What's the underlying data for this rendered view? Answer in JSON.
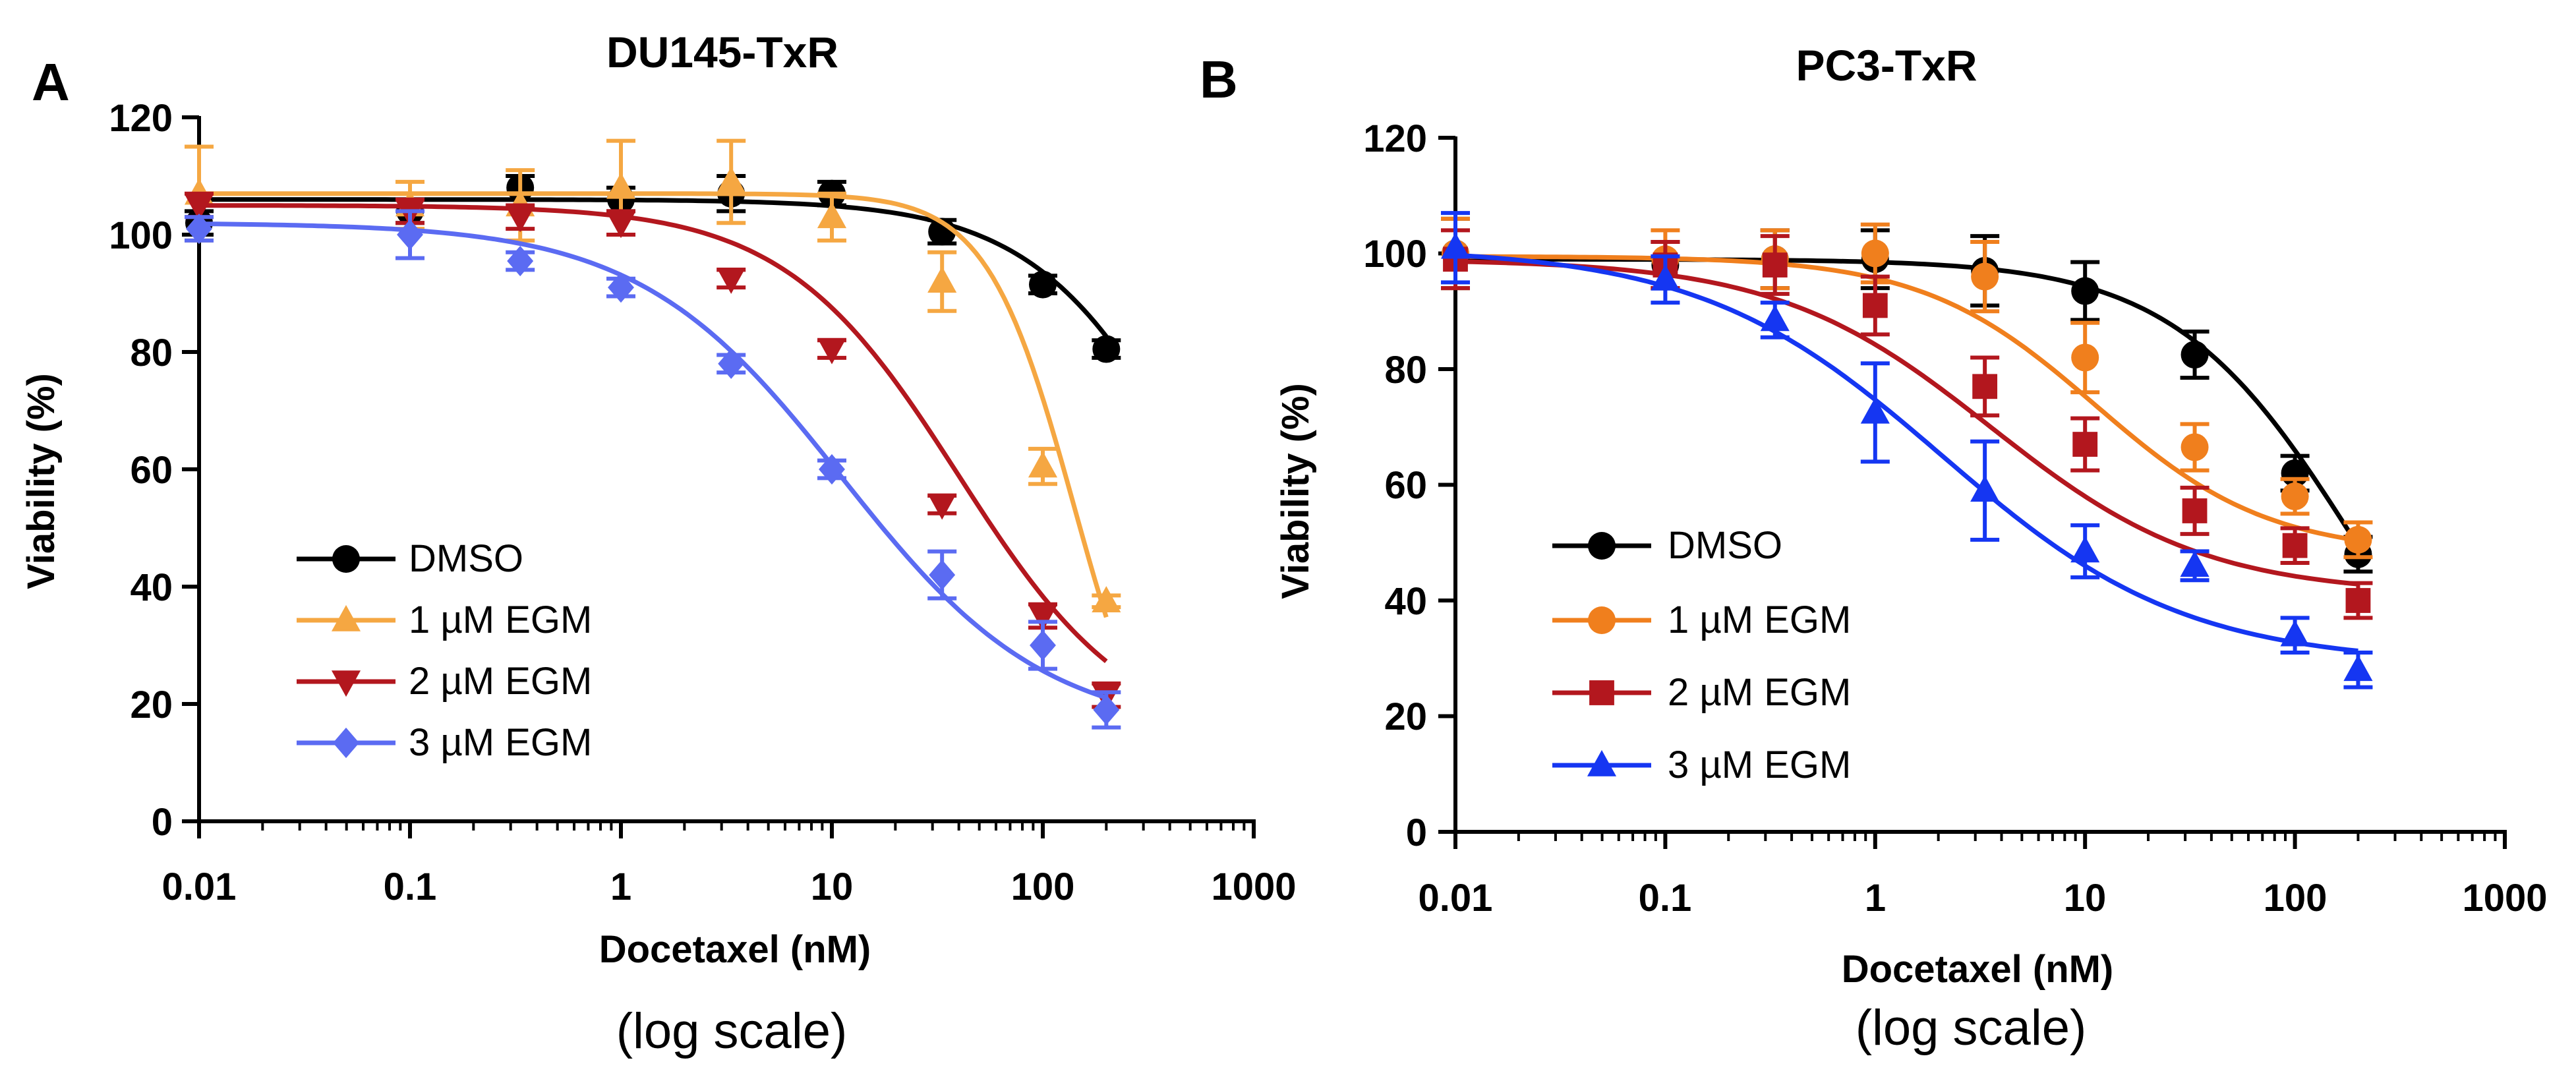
{
  "figure": {
    "note_label": "(log scale)"
  },
  "chart_data": [
    {
      "type": "line",
      "panel": "A",
      "title": "DU145-TxR",
      "xlabel": "Docetaxel (nM)",
      "ylabel": "Viability (%)",
      "xscale": "log",
      "xlim": [
        0.01,
        1000
      ],
      "ylim": [
        0,
        120
      ],
      "xticks": [
        "0.01",
        "0.1",
        "1",
        "10",
        "100",
        "1000"
      ],
      "yticks": [
        "0",
        "20",
        "40",
        "60",
        "80",
        "100",
        "120"
      ],
      "legend_position": "bottom-left",
      "series": [
        {
          "name": "DMSO",
          "color": "#000000",
          "marker": "circle",
          "x": [
            0.01,
            0.1,
            0.333,
            1,
            3.33,
            10,
            33.3,
            100,
            200
          ],
          "y": [
            102,
            104,
            108,
            106,
            107,
            107,
            100.5,
            91.5,
            80.5
          ],
          "err": [
            2,
            2,
            2,
            2,
            3,
            2,
            2,
            1.5,
            1.5
          ],
          "fit": {
            "top": 106,
            "bottom": 0,
            "logEC50": 2.8,
            "hill": 1.1
          }
        },
        {
          "name": "1 µM EGM",
          "color": "#F5A742",
          "marker": "triangle-up",
          "x": [
            0.01,
            0.1,
            0.333,
            1,
            3.33,
            10,
            33.3,
            100,
            200
          ],
          "y": [
            107,
            105,
            105,
            108,
            109,
            103,
            92,
            60.5,
            37.5
          ],
          "err": [
            8,
            4,
            6,
            8,
            7,
            4,
            5,
            3,
            1
          ],
          "fit": {
            "top": 107,
            "bottom": 0,
            "logEC50": 2.15,
            "hill": 2.1
          }
        },
        {
          "name": "2 µM EGM",
          "color": "#B3171E",
          "marker": "triangle-down",
          "x": [
            0.01,
            0.1,
            0.333,
            1,
            3.33,
            10,
            33.3,
            100,
            200
          ],
          "y": [
            105,
            104,
            103,
            102,
            92.5,
            80.5,
            54,
            35,
            21.5
          ],
          "err": [
            2,
            2,
            2,
            2,
            1.5,
            1.5,
            1.5,
            2,
            2
          ],
          "fit": {
            "top": 105,
            "bottom": 13,
            "logEC50": 1.6,
            "hill": 1.05
          }
        },
        {
          "name": "3 µM EGM",
          "color": "#5B6BF2",
          "marker": "diamond",
          "x": [
            0.01,
            0.1,
            0.333,
            1,
            3.33,
            10,
            33.3,
            100,
            200
          ],
          "y": [
            101,
            100,
            95.5,
            91,
            78,
            60,
            42,
            30,
            19
          ],
          "err": [
            2,
            4,
            1.5,
            1.5,
            1.5,
            1.5,
            4,
            4,
            3
          ],
          "fit": {
            "top": 102,
            "bottom": 15,
            "logEC50": 1.05,
            "hill": 0.9
          }
        }
      ]
    },
    {
      "type": "line",
      "panel": "B",
      "title": "PC3-TxR",
      "xlabel": "Docetaxel (nM)",
      "ylabel": "Viability (%)",
      "xscale": "log",
      "xlim": [
        0.01,
        1000
      ],
      "ylim": [
        0,
        120
      ],
      "xticks": [
        "0.01",
        "0.1",
        "1",
        "10",
        "100",
        "1000"
      ],
      "yticks": [
        "0",
        "20",
        "40",
        "60",
        "80",
        "100",
        "120"
      ],
      "legend_position": "bottom-left",
      "series": [
        {
          "name": "DMSO",
          "color": "#000000",
          "marker": "circle",
          "x": [
            0.01,
            0.1,
            0.333,
            1,
            3.33,
            10,
            33.3,
            100,
            200
          ],
          "y": [
            100,
            98,
            99,
            99,
            97,
            93.5,
            82.5,
            62,
            48
          ],
          "err": [
            6,
            4,
            5,
            5,
            6,
            5,
            4,
            3,
            3
          ],
          "fit": {
            "top": 99,
            "bottom": 0,
            "logEC50": 2.3,
            "hill": 1.0
          }
        },
        {
          "name": "1 µM EGM",
          "color": "#F07F1D",
          "marker": "circle",
          "x": [
            0.01,
            0.1,
            0.333,
            1,
            3.33,
            10,
            33.3,
            100,
            200
          ],
          "y": [
            100,
            99,
            99,
            100,
            96,
            82,
            66.5,
            58,
            50.5
          ],
          "err": [
            6,
            5,
            5,
            5,
            6,
            6,
            4,
            3,
            3
          ],
          "fit": {
            "top": 99.5,
            "bottom": 48,
            "logEC50": 1.05,
            "hill": 1.05
          }
        },
        {
          "name": "2 µM EGM",
          "color": "#B3171E",
          "marker": "square",
          "x": [
            0.01,
            0.1,
            0.333,
            1,
            3.33,
            10,
            33.3,
            100,
            200
          ],
          "y": [
            99,
            98,
            98,
            91,
            77,
            67,
            55.5,
            49.5,
            40
          ],
          "err": [
            5,
            4,
            5,
            5,
            5,
            4.5,
            4,
            3,
            3
          ],
          "fit": {
            "top": 99,
            "bottom": 41,
            "logEC50": 0.55,
            "hill": 0.85
          }
        },
        {
          "name": "3 µM EGM",
          "color": "#1536F2",
          "marker": "triangle-up",
          "x": [
            0.01,
            0.1,
            0.333,
            1,
            3.33,
            10,
            33.3,
            100,
            200
          ],
          "y": [
            101,
            95.5,
            88.5,
            72.5,
            59,
            48.5,
            46,
            34,
            28
          ],
          "err": [
            6,
            4,
            3,
            8.5,
            8.5,
            4.5,
            2.5,
            3,
            3
          ],
          "fit": {
            "top": 101,
            "bottom": 29,
            "logEC50": 0.32,
            "hill": 0.75
          }
        }
      ]
    }
  ]
}
